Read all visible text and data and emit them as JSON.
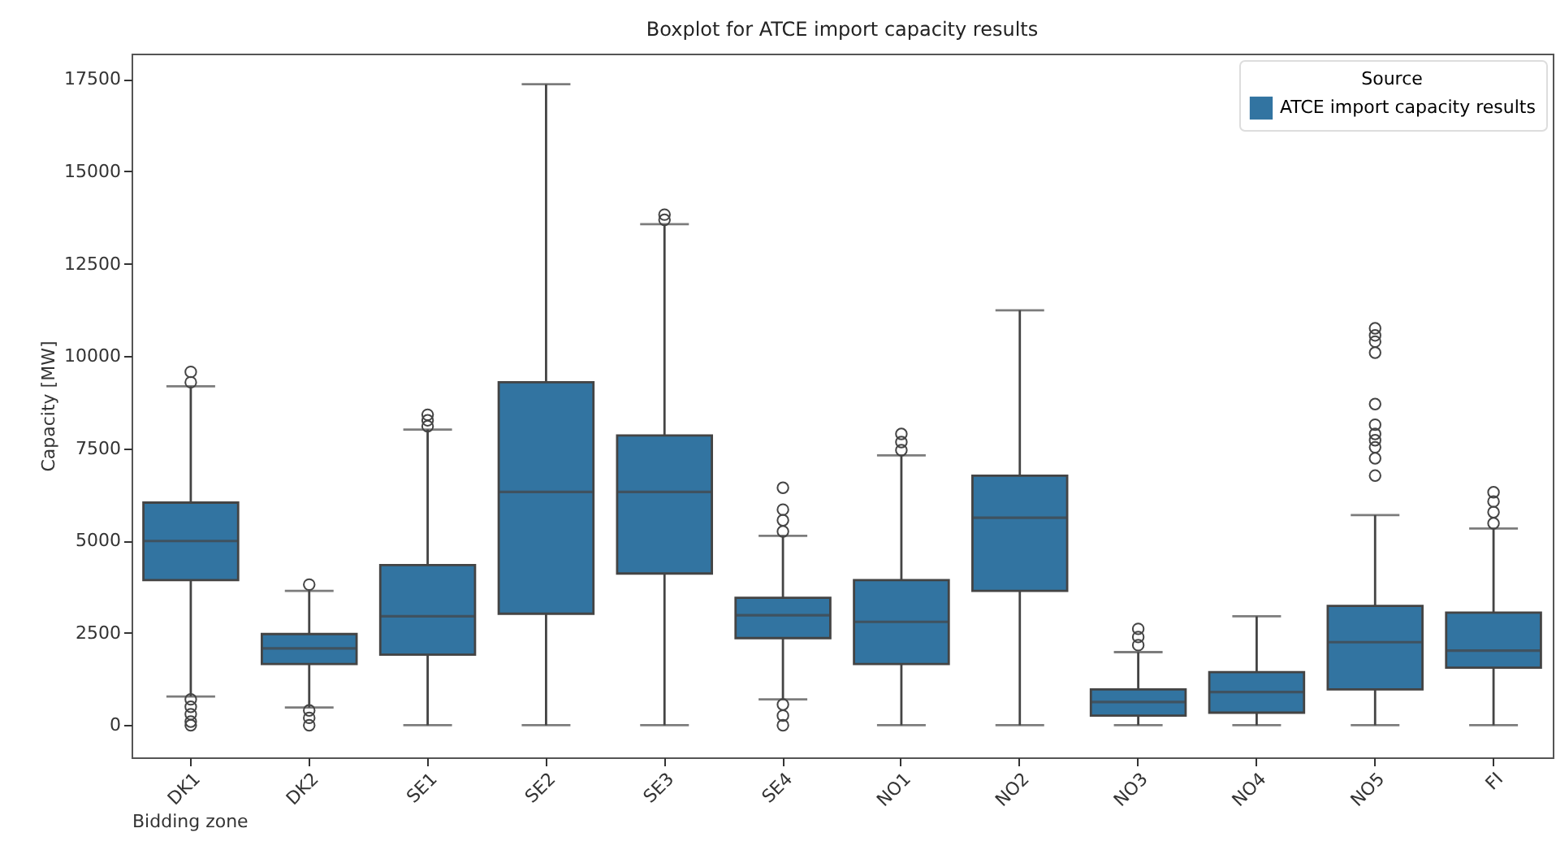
{
  "chart_data": {
    "type": "box",
    "title": "Boxplot for ATCE import capacity results",
    "xlabel": "Bidding zone",
    "ylabel": "Capacity [MW]",
    "legend_title": "Source",
    "legend": "top right",
    "grid": false,
    "categories": [
      "DK1",
      "DK2",
      "SE1",
      "SE2",
      "SE3",
      "SE4",
      "NO1",
      "NO2",
      "NO3",
      "NO4",
      "NO5",
      "FI"
    ],
    "ylim": [
      -870,
      18190
    ],
    "yticks": [
      0,
      2500,
      5000,
      7500,
      10000,
      12500,
      15000,
      17500
    ],
    "series": [
      {
        "name": "ATCE import capacity results",
        "color": "#3274a1",
        "boxes": [
          {
            "low": 780,
            "q1": 3930,
            "median": 4990,
            "q3": 6030,
            "high": 9180,
            "outliers": [
              9290,
              9570,
              700,
              500,
              300,
              100,
              0
            ]
          },
          {
            "low": 480,
            "q1": 1660,
            "median": 2080,
            "q3": 2470,
            "high": 3640,
            "outliers": [
              3810,
              400,
              200,
              0
            ]
          },
          {
            "low": 0,
            "q1": 1910,
            "median": 2950,
            "q3": 4340,
            "high": 8010,
            "outliers": [
              8100,
              8260,
              8410
            ]
          },
          {
            "low": 0,
            "q1": 3020,
            "median": 6320,
            "q3": 9290,
            "high": 17360
          },
          {
            "low": 0,
            "q1": 4110,
            "median": 6320,
            "q3": 7850,
            "high": 13570,
            "outliers": [
              13690,
              13830
            ]
          },
          {
            "low": 700,
            "q1": 2360,
            "median": 2980,
            "q3": 3450,
            "high": 5130,
            "outliers": [
              5250,
              5550,
              5840,
              6430,
              560,
              260,
              0
            ]
          },
          {
            "low": 0,
            "q1": 1660,
            "median": 2800,
            "q3": 3930,
            "high": 7310,
            "outliers": [
              7450,
              7670,
              7890
            ]
          },
          {
            "low": 0,
            "q1": 3640,
            "median": 5620,
            "q3": 6760,
            "high": 11240
          },
          {
            "low": 0,
            "q1": 260,
            "median": 630,
            "q3": 970,
            "high": 1980,
            "outliers": [
              2170,
              2390,
              2610
            ]
          },
          {
            "low": 0,
            "q1": 340,
            "median": 900,
            "q3": 1440,
            "high": 2950
          },
          {
            "low": 0,
            "q1": 970,
            "median": 2250,
            "q3": 3230,
            "high": 5690,
            "outliers": [
              6760,
              7230,
              7530,
              7720,
              7890,
              8140,
              8700,
              10090,
              10390,
              10560,
              10750
            ]
          },
          {
            "low": 0,
            "q1": 1560,
            "median": 2020,
            "q3": 3050,
            "high": 5330,
            "outliers": [
              5470,
              5770,
              6060,
              6310
            ]
          }
        ]
      }
    ]
  }
}
